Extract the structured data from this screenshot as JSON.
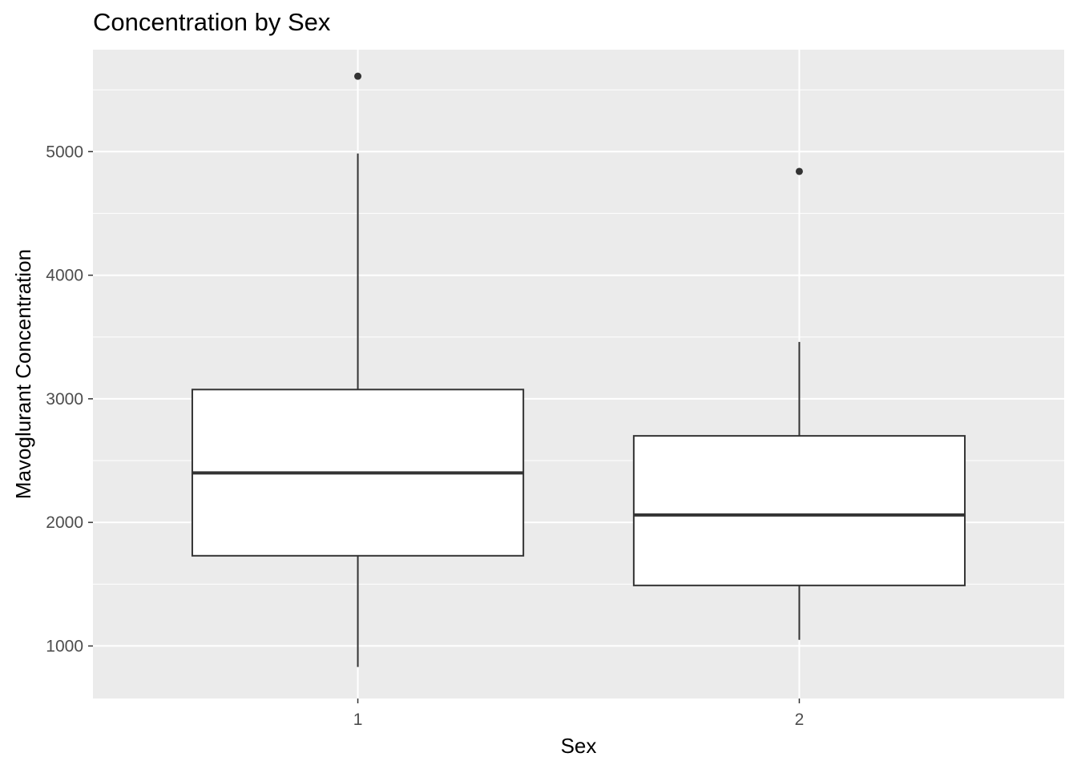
{
  "chart_data": {
    "type": "boxplot",
    "title": "Concentration by Sex",
    "xlabel": "Sex",
    "ylabel": "Mavoglurant Concentration",
    "categories": [
      "1",
      "2"
    ],
    "ylim": [
      575,
      5825
    ],
    "yticks": [
      1000,
      2000,
      3000,
      4000,
      5000
    ],
    "grid": true,
    "boxes": [
      {
        "category": "1",
        "whisker_low": 830,
        "q1": 1730,
        "median": 2400,
        "q3": 3075,
        "whisker_high": 4985,
        "outliers": [
          5610
        ]
      },
      {
        "category": "2",
        "whisker_low": 1050,
        "q1": 1490,
        "median": 2060,
        "q3": 2700,
        "whisker_high": 3460,
        "outliers": [
          4840
        ]
      }
    ],
    "colors": {
      "panel": "#ebebeb",
      "grid": "#ffffff",
      "box_fill": "#ffffff",
      "box_line": "#333333",
      "tick_text": "#4d4d4d"
    }
  }
}
